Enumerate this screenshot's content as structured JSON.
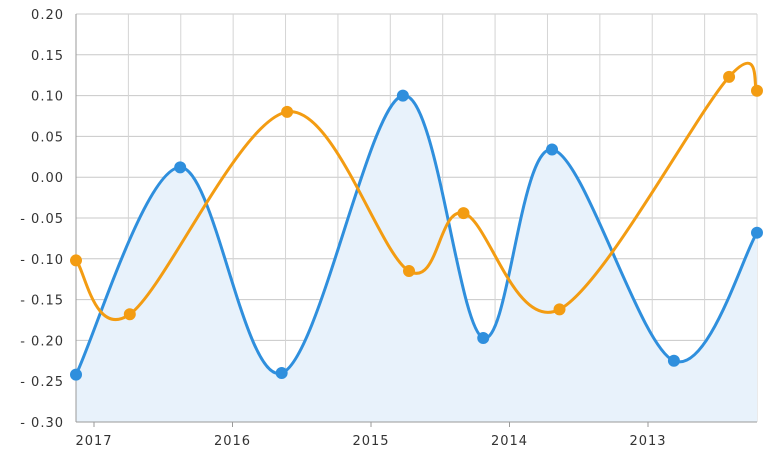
{
  "chart_data": {
    "type": "line",
    "title": "",
    "xlabel": "",
    "ylabel": "",
    "x_tick_labels": [
      "2017",
      "2016",
      "2015",
      "2014",
      "2013"
    ],
    "y_tick_labels": [
      "0.20",
      "0.15",
      "0.10",
      "0.05",
      "0.00",
      "- 0.05",
      "- 0.10",
      "- 0.15",
      "- 0.20",
      "- 0.25",
      "- 0.30"
    ],
    "ylim": [
      -0.3,
      0.2
    ],
    "xlim": [
      0,
      1
    ],
    "grid": true,
    "legend": "none",
    "series": [
      {
        "color": "#2f8fdd",
        "fill": "#e8f2fb",
        "area": true,
        "points": [
          {
            "x": 0.0,
            "y": -0.242
          },
          {
            "x": 0.153,
            "y": 0.012
          },
          {
            "x": 0.302,
            "y": -0.24
          },
          {
            "x": 0.48,
            "y": 0.1
          },
          {
            "x": 0.598,
            "y": -0.197
          },
          {
            "x": 0.699,
            "y": 0.034
          },
          {
            "x": 0.878,
            "y": -0.225
          },
          {
            "x": 1.0,
            "y": -0.068
          }
        ]
      },
      {
        "color": "#f39c12",
        "area": false,
        "points": [
          {
            "x": 0.0,
            "y": -0.102
          },
          {
            "x": 0.079,
            "y": -0.168
          },
          {
            "x": 0.31,
            "y": 0.08
          },
          {
            "x": 0.489,
            "y": -0.115
          },
          {
            "x": 0.569,
            "y": -0.044
          },
          {
            "x": 0.71,
            "y": -0.162
          },
          {
            "x": 0.959,
            "y": 0.123
          },
          {
            "x": 1.0,
            "y": 0.106
          }
        ]
      }
    ]
  }
}
